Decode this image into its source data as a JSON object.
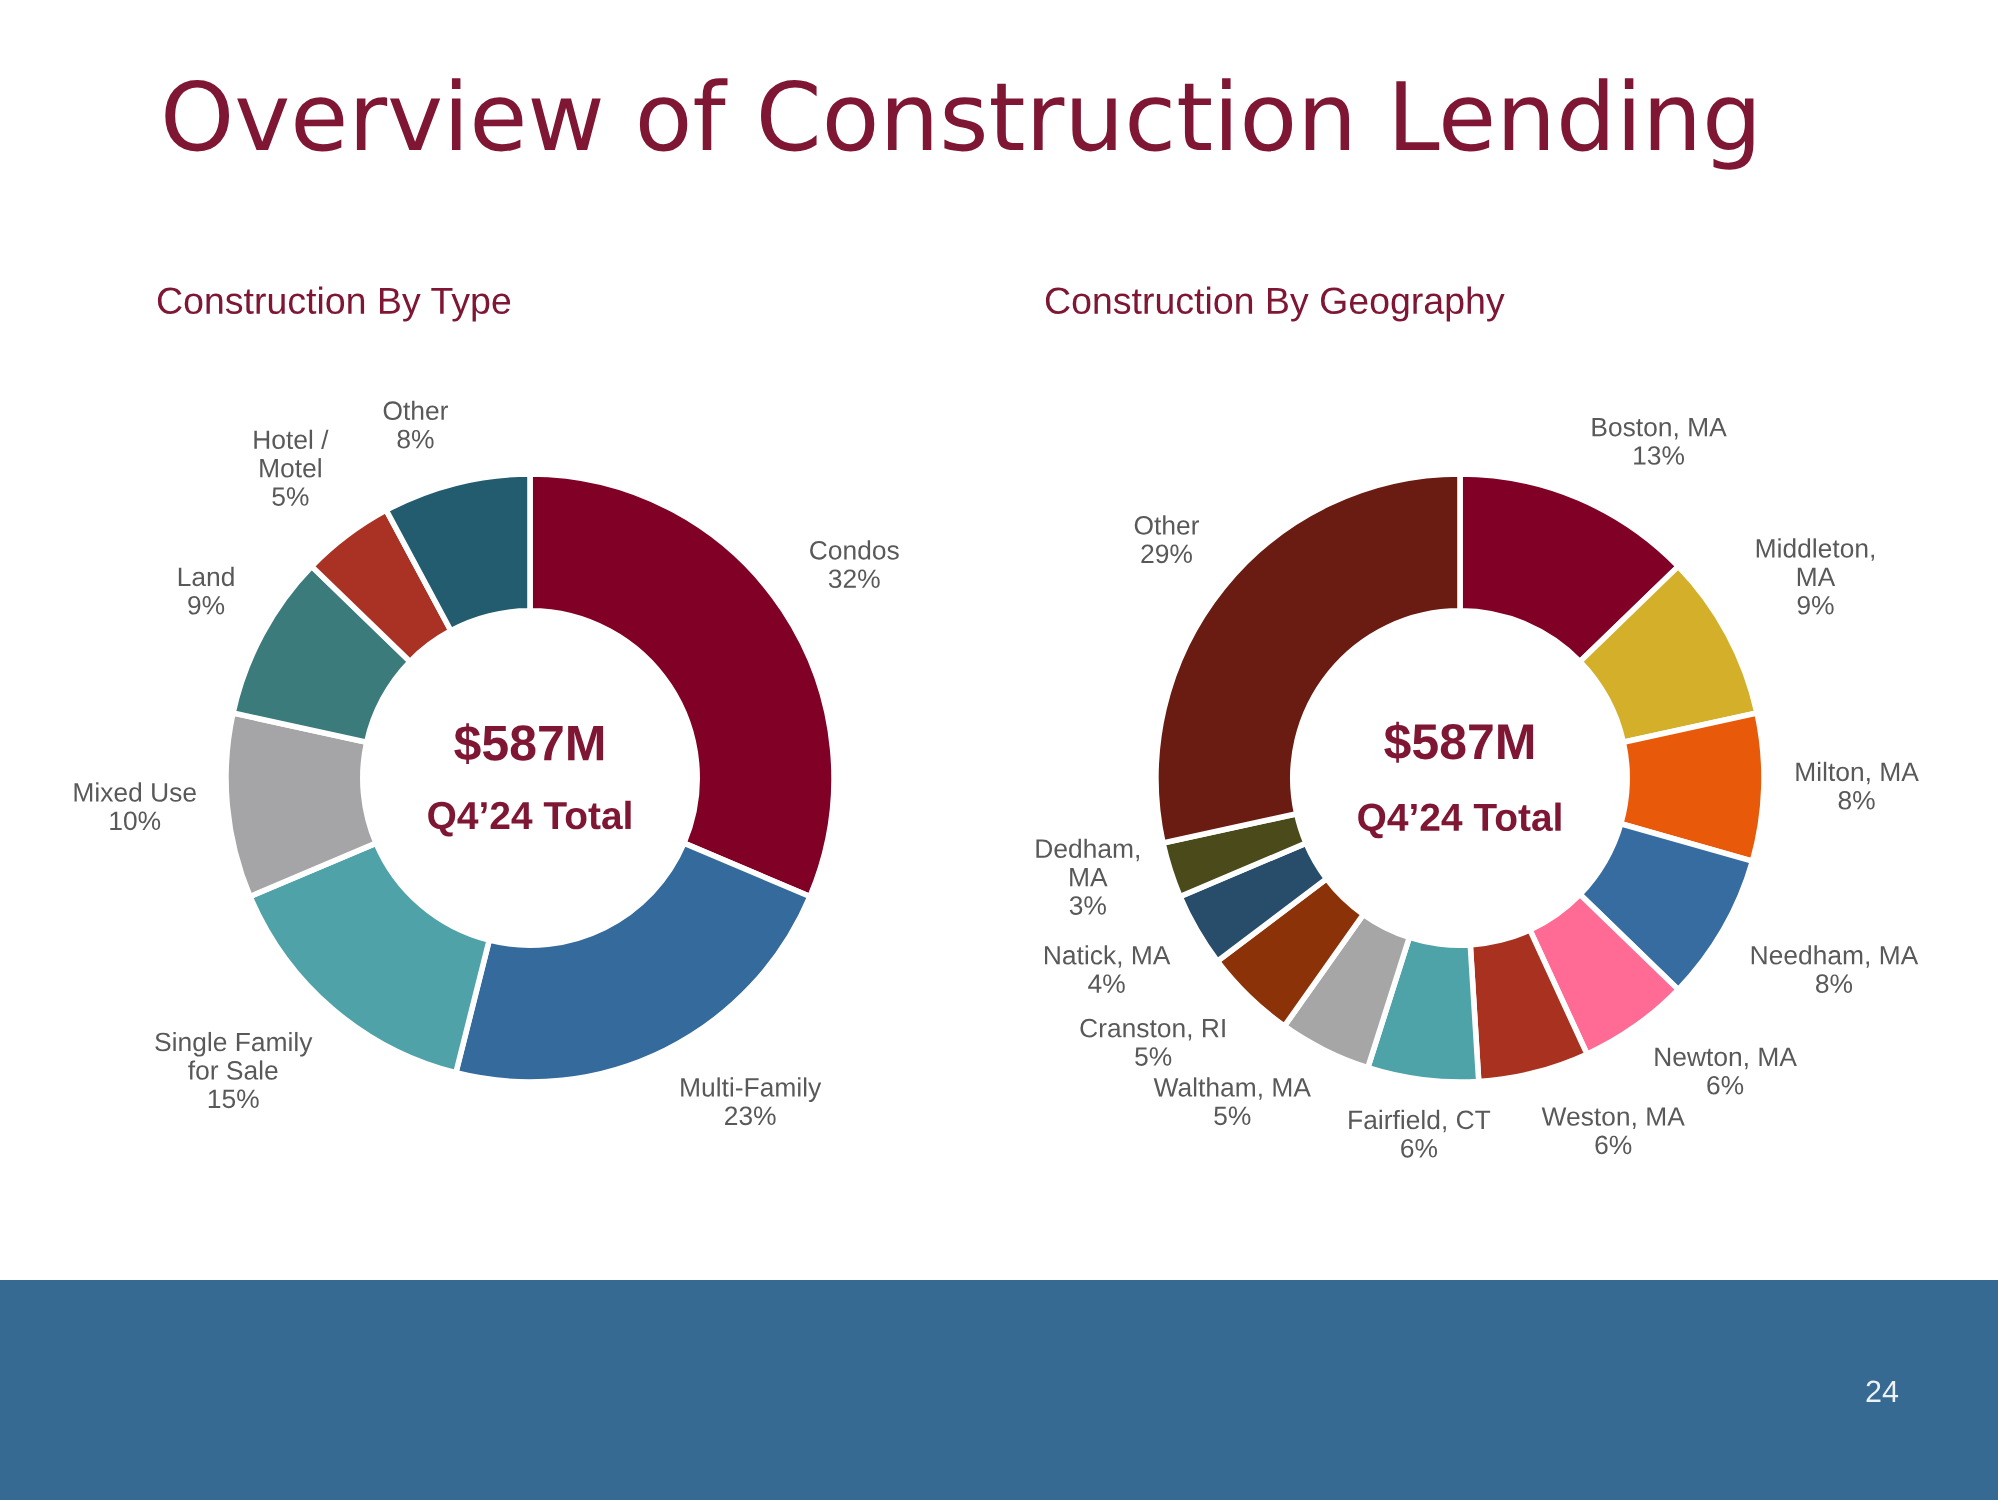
{
  "chart_data": [
    {
      "type": "donut",
      "title": "Overview of Construction Lending",
      "subtitle": "Construction By Type",
      "categories": [
        "Condos",
        "Multi-Family",
        "Single Family\nfor Sale",
        "Mixed Use",
        "Land",
        "Hotel /\nMotel",
        "Other"
      ],
      "values": [
        32,
        23,
        15,
        10,
        9,
        5,
        8
      ],
      "value_labels": [
        "32%",
        "23%",
        "15%",
        "10%",
        "9%",
        "5%",
        "8%"
      ],
      "colors": [
        "#800026",
        "#346a9c",
        "#4fa3a8",
        "#a5a5a7",
        "#3b7b7b",
        "#a93224",
        "#235c6e"
      ],
      "annotations": [
        "$587M",
        "Q4’24 Total"
      ]
    },
    {
      "type": "donut",
      "subtitle": "Construction By Geography",
      "categories": [
        "Boston, MA",
        "Middleton,\nMA",
        "Milton, MA",
        "Needham, MA",
        "Newton, MA",
        "Weston, MA",
        "Fairfield, CT",
        "Waltham, MA",
        "Cranston, RI",
        "Natick, MA",
        "Dedham,\nMA",
        "Other"
      ],
      "values": [
        13,
        9,
        8,
        8,
        6,
        6,
        6,
        5,
        5,
        4,
        3,
        29
      ],
      "value_labels": [
        "13%",
        "9%",
        "8%",
        "8%",
        "6%",
        "6%",
        "6%",
        "5%",
        "5%",
        "4%",
        "3%",
        "29%"
      ],
      "colors": [
        "#800026",
        "#d4b02a",
        "#e85a0a",
        "#366c9f",
        "#ff6b95",
        "#a8321f",
        "#4ea3a8",
        "#a6a6a6",
        "#8b3209",
        "#274d6b",
        "#4a4a1a",
        "#6a1c12"
      ],
      "annotations": [
        "$587M",
        "Q4’24 Total",
        "24"
      ]
    }
  ]
}
